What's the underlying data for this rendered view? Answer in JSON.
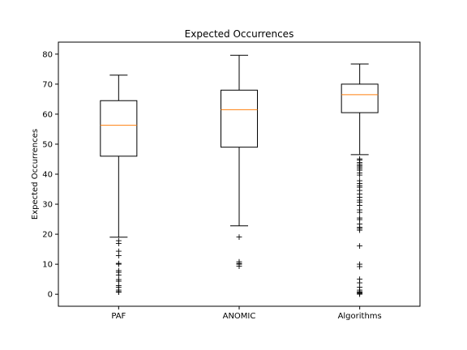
{
  "chart_data": {
    "type": "boxplot",
    "title": "Expected Occurrences",
    "xlabel": "",
    "ylabel": "Expected Occurrences",
    "ylim": [
      -4,
      84
    ],
    "yticks": [
      0,
      10,
      20,
      30,
      40,
      50,
      60,
      70,
      80
    ],
    "grid": false,
    "median_color": "#ff7f0e",
    "box_color": "#000000",
    "flier_marker": "+",
    "categories": [
      "PAF",
      "ANOMIC",
      "Algorithms"
    ],
    "boxes": [
      {
        "label": "PAF",
        "whisker_low": 19,
        "q1": 46,
        "median": 56.3,
        "q3": 64.5,
        "whisker_high": 73,
        "fliers": [
          18,
          17,
          14.5,
          13,
          10.5,
          10.2,
          8,
          7.5,
          6.5,
          5,
          4.5,
          3,
          2.5,
          1.5,
          1,
          0.8
        ]
      },
      {
        "label": "ANOMIC",
        "whisker_low": 22.8,
        "q1": 49,
        "median": 61.5,
        "q3": 68,
        "whisker_high": 79.6,
        "fliers": [
          19.2,
          11,
          10.5,
          10.2,
          9.5
        ]
      },
      {
        "label": "Algorithms",
        "whisker_low": 46.5,
        "q1": 60.5,
        "median": 66.5,
        "q3": 70,
        "whisker_high": 76.7,
        "fliers": [
          45.2,
          44.8,
          44,
          43.5,
          43,
          42.5,
          42,
          41.5,
          40.5,
          39.8,
          38,
          37,
          36.3,
          35.8,
          34.8,
          33.5,
          32.5,
          31.5,
          30.8,
          29.8,
          28.3,
          27.5,
          25.5,
          25,
          23.5,
          22.5,
          22,
          21.5,
          16.3,
          10.2,
          9.3,
          5.2,
          4,
          2.5,
          1.5,
          1,
          0.7,
          0.4,
          0.2
        ]
      }
    ]
  }
}
